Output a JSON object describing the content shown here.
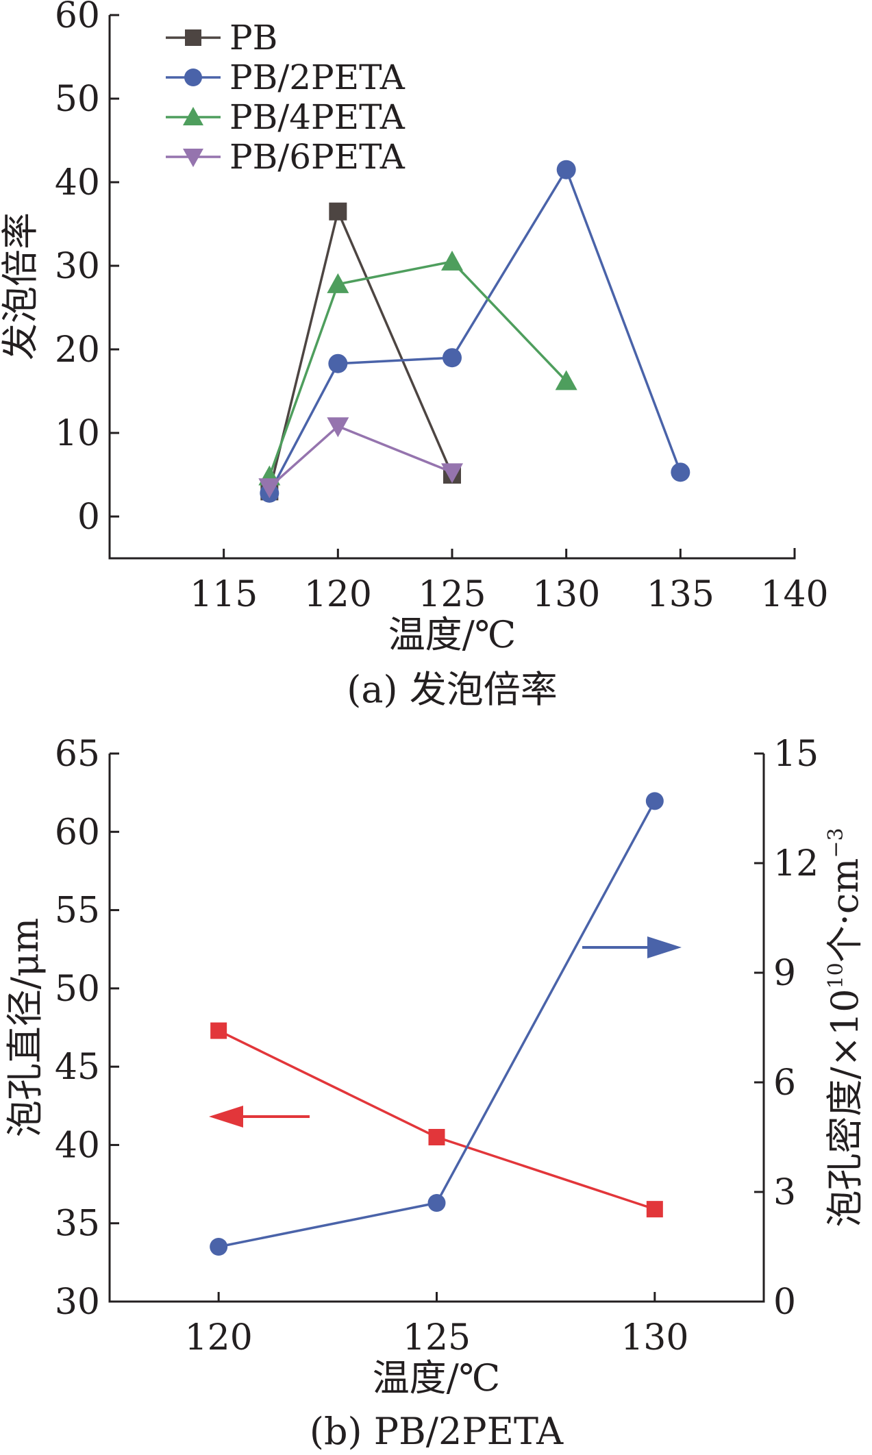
{
  "chart_data": [
    {
      "type": "line",
      "caption": "(a) 发泡倍率",
      "xlabel": "温度/℃",
      "ylabel": "发泡倍率",
      "xlim": [
        110,
        140
      ],
      "ylim": [
        -5,
        60
      ],
      "xticks": [
        115,
        120,
        125,
        130,
        135,
        140
      ],
      "yticks": [
        0,
        10,
        20,
        30,
        40,
        50,
        60
      ],
      "legend_position": "top-left",
      "series": [
        {
          "name": "PB",
          "marker": "square",
          "color": "#4d4542",
          "x": [
            117,
            120,
            125
          ],
          "y": [
            3.0,
            36.5,
            5.0
          ]
        },
        {
          "name": "PB/2PETA",
          "marker": "circle",
          "color": "#4a63a9",
          "x": [
            117,
            120,
            125,
            130,
            135
          ],
          "y": [
            2.8,
            18.3,
            19.0,
            41.5,
            5.3
          ]
        },
        {
          "name": "PB/4PETA",
          "marker": "triangle-up",
          "color": "#4e9e5d",
          "x": [
            117,
            120,
            125,
            130
          ],
          "y": [
            4.8,
            27.8,
            30.5,
            16.2
          ]
        },
        {
          "name": "PB/6PETA",
          "marker": "triangle-down",
          "color": "#9574ae",
          "x": [
            117,
            120,
            125
          ],
          "y": [
            3.5,
            10.8,
            5.3
          ]
        }
      ]
    },
    {
      "type": "line",
      "caption": "(b) PB/2PETA",
      "xlabel": "温度/℃",
      "ylabel": "泡孔直径/μm",
      "y2label_main": "泡孔密度/×10",
      "y2label_exp": "10",
      "y2label_unit": "个·cm",
      "y2label_unit_exp": "−3",
      "xlim": [
        117.5,
        132.5
      ],
      "ylim": [
        30,
        65
      ],
      "y2lim": [
        0,
        15
      ],
      "xticks": [
        120,
        125,
        130
      ],
      "yticks": [
        30,
        35,
        40,
        45,
        50,
        55,
        60,
        65
      ],
      "y2ticks": [
        0,
        3,
        6,
        9,
        12,
        15
      ],
      "series": [
        {
          "name": "泡孔直径",
          "axis": "left",
          "marker": "square",
          "color": "#e2363a",
          "x": [
            120,
            125,
            130
          ],
          "y": [
            47.3,
            40.5,
            35.9
          ]
        },
        {
          "name": "泡孔密度",
          "axis": "right",
          "marker": "circle",
          "color": "#4a63a9",
          "x": [
            120,
            125,
            130
          ],
          "y": [
            1.5,
            2.7,
            13.7
          ]
        }
      ]
    }
  ]
}
